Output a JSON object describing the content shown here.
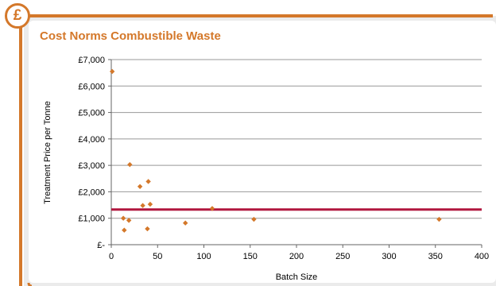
{
  "badge": {
    "icon": "pound-sign-icon",
    "symbol": "£"
  },
  "colors": {
    "accent": "#d4782a",
    "frame": "#d4782a",
    "panel_background": "#ebebeb",
    "reference_line": "#b0173f",
    "marker": "#d4782a",
    "gridline": "#999999"
  },
  "chart_data": {
    "type": "scatter",
    "title": "Cost Norms Combustible Waste",
    "xlabel": "Batch Size",
    "ylabel": "Treatment Price per Tonne",
    "xlim": [
      0,
      400
    ],
    "ylim": [
      0,
      7000
    ],
    "x_ticks": [
      0,
      50,
      100,
      150,
      200,
      250,
      300,
      350,
      400
    ],
    "y_ticks": [
      0,
      1000,
      2000,
      3000,
      4000,
      5000,
      6000,
      7000
    ],
    "y_tick_labels": [
      "£-",
      "£1,000",
      "£2,000",
      "£3,000",
      "£4,000",
      "£5,000",
      "£6,000",
      "£7,000"
    ],
    "grid": "horizontal",
    "legend": "none",
    "reference_line": {
      "y": 1330
    },
    "points": [
      {
        "x": 1,
        "y": 6550
      },
      {
        "x": 13,
        "y": 1000
      },
      {
        "x": 14,
        "y": 550
      },
      {
        "x": 19,
        "y": 920
      },
      {
        "x": 20,
        "y": 3030
      },
      {
        "x": 31,
        "y": 2200
      },
      {
        "x": 34,
        "y": 1480
      },
      {
        "x": 39,
        "y": 600
      },
      {
        "x": 40,
        "y": 2390
      },
      {
        "x": 42,
        "y": 1530
      },
      {
        "x": 80,
        "y": 820
      },
      {
        "x": 109,
        "y": 1370
      },
      {
        "x": 154,
        "y": 960
      },
      {
        "x": 354,
        "y": 960
      }
    ]
  }
}
